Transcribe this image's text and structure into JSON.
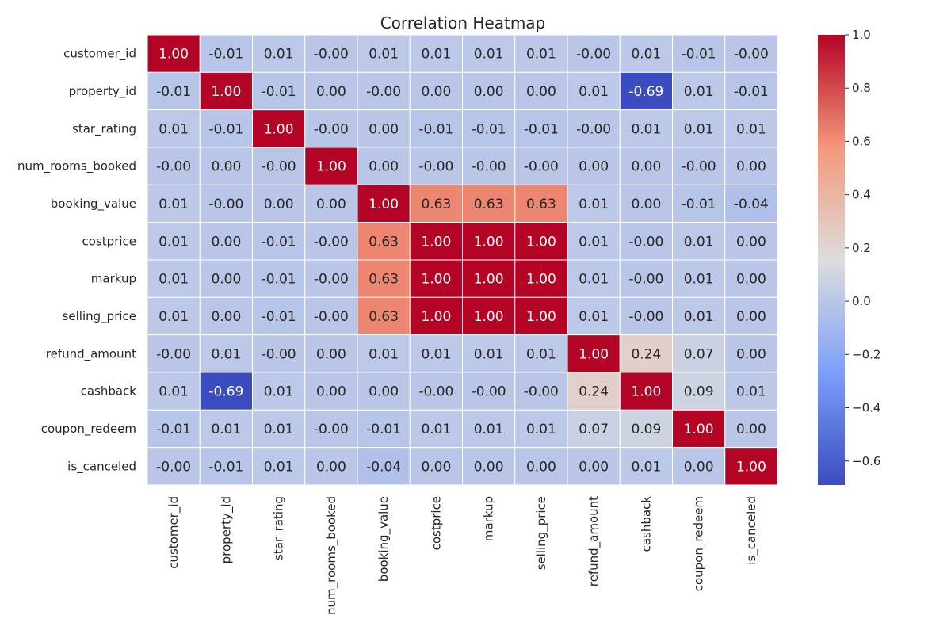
{
  "chart_data": {
    "type": "heatmap",
    "title": "Correlation Heatmap",
    "rows": [
      "customer_id",
      "property_id",
      "star_rating",
      "num_rooms_booked",
      "booking_value",
      "costprice",
      "markup",
      "selling_price",
      "refund_amount",
      "cashback",
      "coupon_redeem",
      "is_canceled"
    ],
    "columns": [
      "customer_id",
      "property_id",
      "star_rating",
      "num_rooms_booked",
      "booking_value",
      "costprice",
      "markup",
      "selling_price",
      "refund_amount",
      "cashback",
      "coupon_redeem",
      "is_canceled"
    ],
    "cells": [
      [
        "1.00",
        "-0.01",
        "0.01",
        "-0.00",
        "0.01",
        "0.01",
        "0.01",
        "0.01",
        "-0.00",
        "0.01",
        "-0.01",
        "-0.00"
      ],
      [
        "-0.01",
        "1.00",
        "-0.01",
        "0.00",
        "-0.00",
        "0.00",
        "0.00",
        "0.00",
        "0.01",
        "-0.69",
        "0.01",
        "-0.01"
      ],
      [
        "0.01",
        "-0.01",
        "1.00",
        "-0.00",
        "0.00",
        "-0.01",
        "-0.01",
        "-0.01",
        "-0.00",
        "0.01",
        "0.01",
        "0.01"
      ],
      [
        "-0.00",
        "0.00",
        "-0.00",
        "1.00",
        "0.00",
        "-0.00",
        "-0.00",
        "-0.00",
        "0.00",
        "0.00",
        "-0.00",
        "0.00"
      ],
      [
        "0.01",
        "-0.00",
        "0.00",
        "0.00",
        "1.00",
        "0.63",
        "0.63",
        "0.63",
        "0.01",
        "0.00",
        "-0.01",
        "-0.04"
      ],
      [
        "0.01",
        "0.00",
        "-0.01",
        "-0.00",
        "0.63",
        "1.00",
        "1.00",
        "1.00",
        "0.01",
        "-0.00",
        "0.01",
        "0.00"
      ],
      [
        "0.01",
        "0.00",
        "-0.01",
        "-0.00",
        "0.63",
        "1.00",
        "1.00",
        "1.00",
        "0.01",
        "-0.00",
        "0.01",
        "0.00"
      ],
      [
        "0.01",
        "0.00",
        "-0.01",
        "-0.00",
        "0.63",
        "1.00",
        "1.00",
        "1.00",
        "0.01",
        "-0.00",
        "0.01",
        "0.00"
      ],
      [
        "-0.00",
        "0.01",
        "-0.00",
        "0.00",
        "0.01",
        "0.01",
        "0.01",
        "0.01",
        "1.00",
        "0.24",
        "0.07",
        "0.00"
      ],
      [
        "0.01",
        "-0.69",
        "0.01",
        "0.00",
        "0.00",
        "-0.00",
        "-0.00",
        "-0.00",
        "0.24",
        "1.00",
        "0.09",
        "0.01"
      ],
      [
        "-0.01",
        "0.01",
        "0.01",
        "-0.00",
        "-0.01",
        "0.01",
        "0.01",
        "0.01",
        "0.07",
        "0.09",
        "1.00",
        "0.00"
      ],
      [
        "-0.00",
        "-0.01",
        "0.01",
        "0.00",
        "-0.04",
        "0.00",
        "0.00",
        "0.00",
        "0.00",
        "0.01",
        "0.00",
        "1.00"
      ]
    ],
    "colormap": "coolwarm",
    "colorbar": {
      "vmin": -0.69,
      "vmax": 1.0,
      "ticks": [
        "1.0",
        "0.8",
        "0.6",
        "0.4",
        "0.2",
        "0.0",
        "−0.2",
        "−0.4",
        "−0.6"
      ]
    },
    "grid": false,
    "colors": {
      "low": "#3b4cc0",
      "mid": "#dddcdc",
      "high": "#b40426",
      "cell_border": "#ffffff",
      "text_dark": "#262626",
      "text_light": "#ffffff"
    }
  }
}
